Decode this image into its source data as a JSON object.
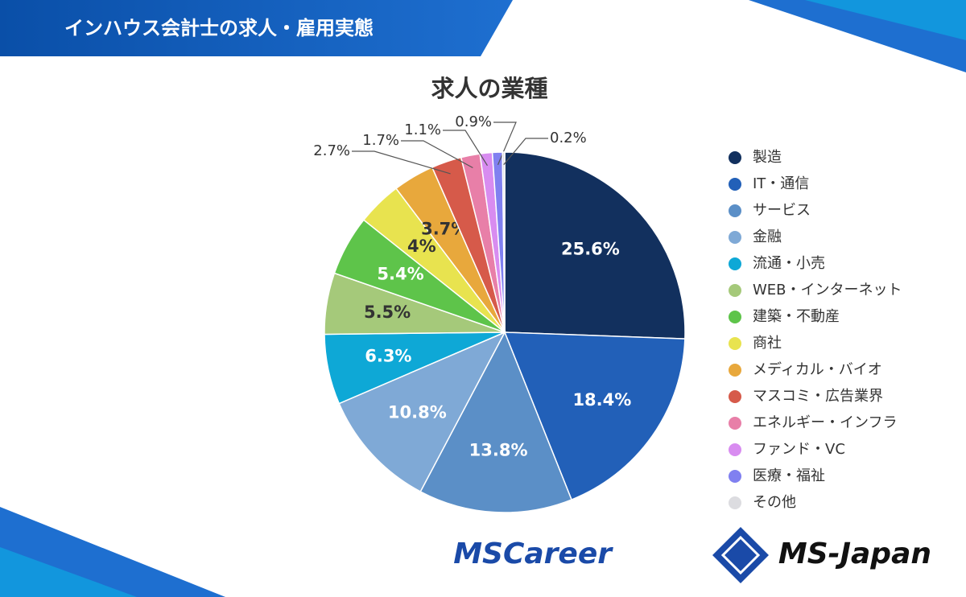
{
  "header": {
    "title": "インハウス会計士の求人・雇用実態"
  },
  "logos": {
    "left": "MSCareer",
    "right": "MS-Japan"
  },
  "chart_data": {
    "type": "pie",
    "title": "求人の業種",
    "categories": [
      "製造",
      "IT・通信",
      "サービス",
      "金融",
      "流通・小売",
      "WEB・インターネット",
      "建築・不動産",
      "商社",
      "メディカル・バイオ",
      "マスコミ・広告業界",
      "エネルギー・インフラ",
      "ファンド・VC",
      "医療・福祉",
      "その他"
    ],
    "values": [
      25.6,
      18.4,
      13.8,
      10.8,
      6.3,
      5.5,
      5.4,
      4,
      3.7,
      2.7,
      1.7,
      1.1,
      0.9,
      0.2
    ],
    "value_labels": [
      "25.6%",
      "18.4%",
      "13.8%",
      "10.8%",
      "6.3%",
      "5.5%",
      "5.4%",
      "4%",
      "3.7%",
      "2.7%",
      "1.7%",
      "1.1%",
      "0.9%",
      "0.2%"
    ],
    "colors": [
      "#12305e",
      "#2260b8",
      "#5b8fc7",
      "#7fa9d6",
      "#0ea8d6",
      "#a5c97a",
      "#5ec44a",
      "#e8e34f",
      "#e8a83c",
      "#d65a4a",
      "#e87fa8",
      "#d88cf0",
      "#8080f0",
      "#dcdce0"
    ],
    "legend": "right"
  }
}
